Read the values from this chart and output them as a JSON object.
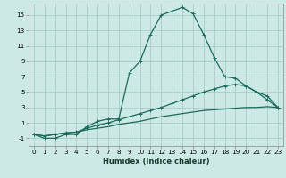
{
  "xlabel": "Humidex (Indice chaleur)",
  "bg_color": "#cce9e5",
  "grid_color": "#aaccc8",
  "line_color": "#1a6b5a",
  "xlim": [
    -0.5,
    23.5
  ],
  "ylim": [
    -2.0,
    16.5
  ],
  "xticks": [
    0,
    1,
    2,
    3,
    4,
    5,
    6,
    7,
    8,
    9,
    10,
    11,
    12,
    13,
    14,
    15,
    16,
    17,
    18,
    19,
    20,
    21,
    22,
    23
  ],
  "yticks": [
    -1,
    1,
    3,
    5,
    7,
    9,
    11,
    13,
    15
  ],
  "line1_x": [
    0,
    1,
    2,
    3,
    4,
    5,
    6,
    7,
    8,
    9,
    10,
    11,
    12,
    13,
    14,
    15,
    16,
    17,
    18,
    19,
    20,
    21,
    22,
    23
  ],
  "line1_y": [
    -0.5,
    -1.0,
    -1.0,
    -0.5,
    -0.5,
    0.5,
    1.2,
    1.5,
    1.5,
    7.5,
    9.0,
    12.5,
    15.0,
    15.5,
    16.0,
    15.2,
    12.5,
    9.5,
    7.0,
    6.8,
    5.8,
    5.0,
    4.0,
    3.0
  ],
  "line2_x": [
    0,
    1,
    2,
    3,
    4,
    5,
    6,
    7,
    8,
    9,
    10,
    11,
    12,
    13,
    14,
    15,
    16,
    17,
    18,
    19,
    20,
    21,
    22,
    23
  ],
  "line2_y": [
    -0.5,
    -0.7,
    -0.5,
    -0.3,
    -0.2,
    0.3,
    0.7,
    1.0,
    1.4,
    1.8,
    2.2,
    2.6,
    3.0,
    3.5,
    4.0,
    4.5,
    5.0,
    5.4,
    5.8,
    6.0,
    5.8,
    5.0,
    4.5,
    3.0
  ],
  "line3_x": [
    0,
    1,
    2,
    3,
    4,
    5,
    6,
    7,
    8,
    9,
    10,
    11,
    12,
    13,
    14,
    15,
    16,
    17,
    18,
    19,
    20,
    21,
    22,
    23
  ],
  "line3_y": [
    -0.5,
    -0.7,
    -0.5,
    -0.3,
    -0.2,
    0.1,
    0.3,
    0.5,
    0.8,
    1.0,
    1.2,
    1.5,
    1.8,
    2.0,
    2.2,
    2.4,
    2.6,
    2.7,
    2.8,
    2.9,
    3.0,
    3.0,
    3.1,
    3.0
  ],
  "xlabel_fontsize": 6.0,
  "tick_fontsize": 5.2
}
